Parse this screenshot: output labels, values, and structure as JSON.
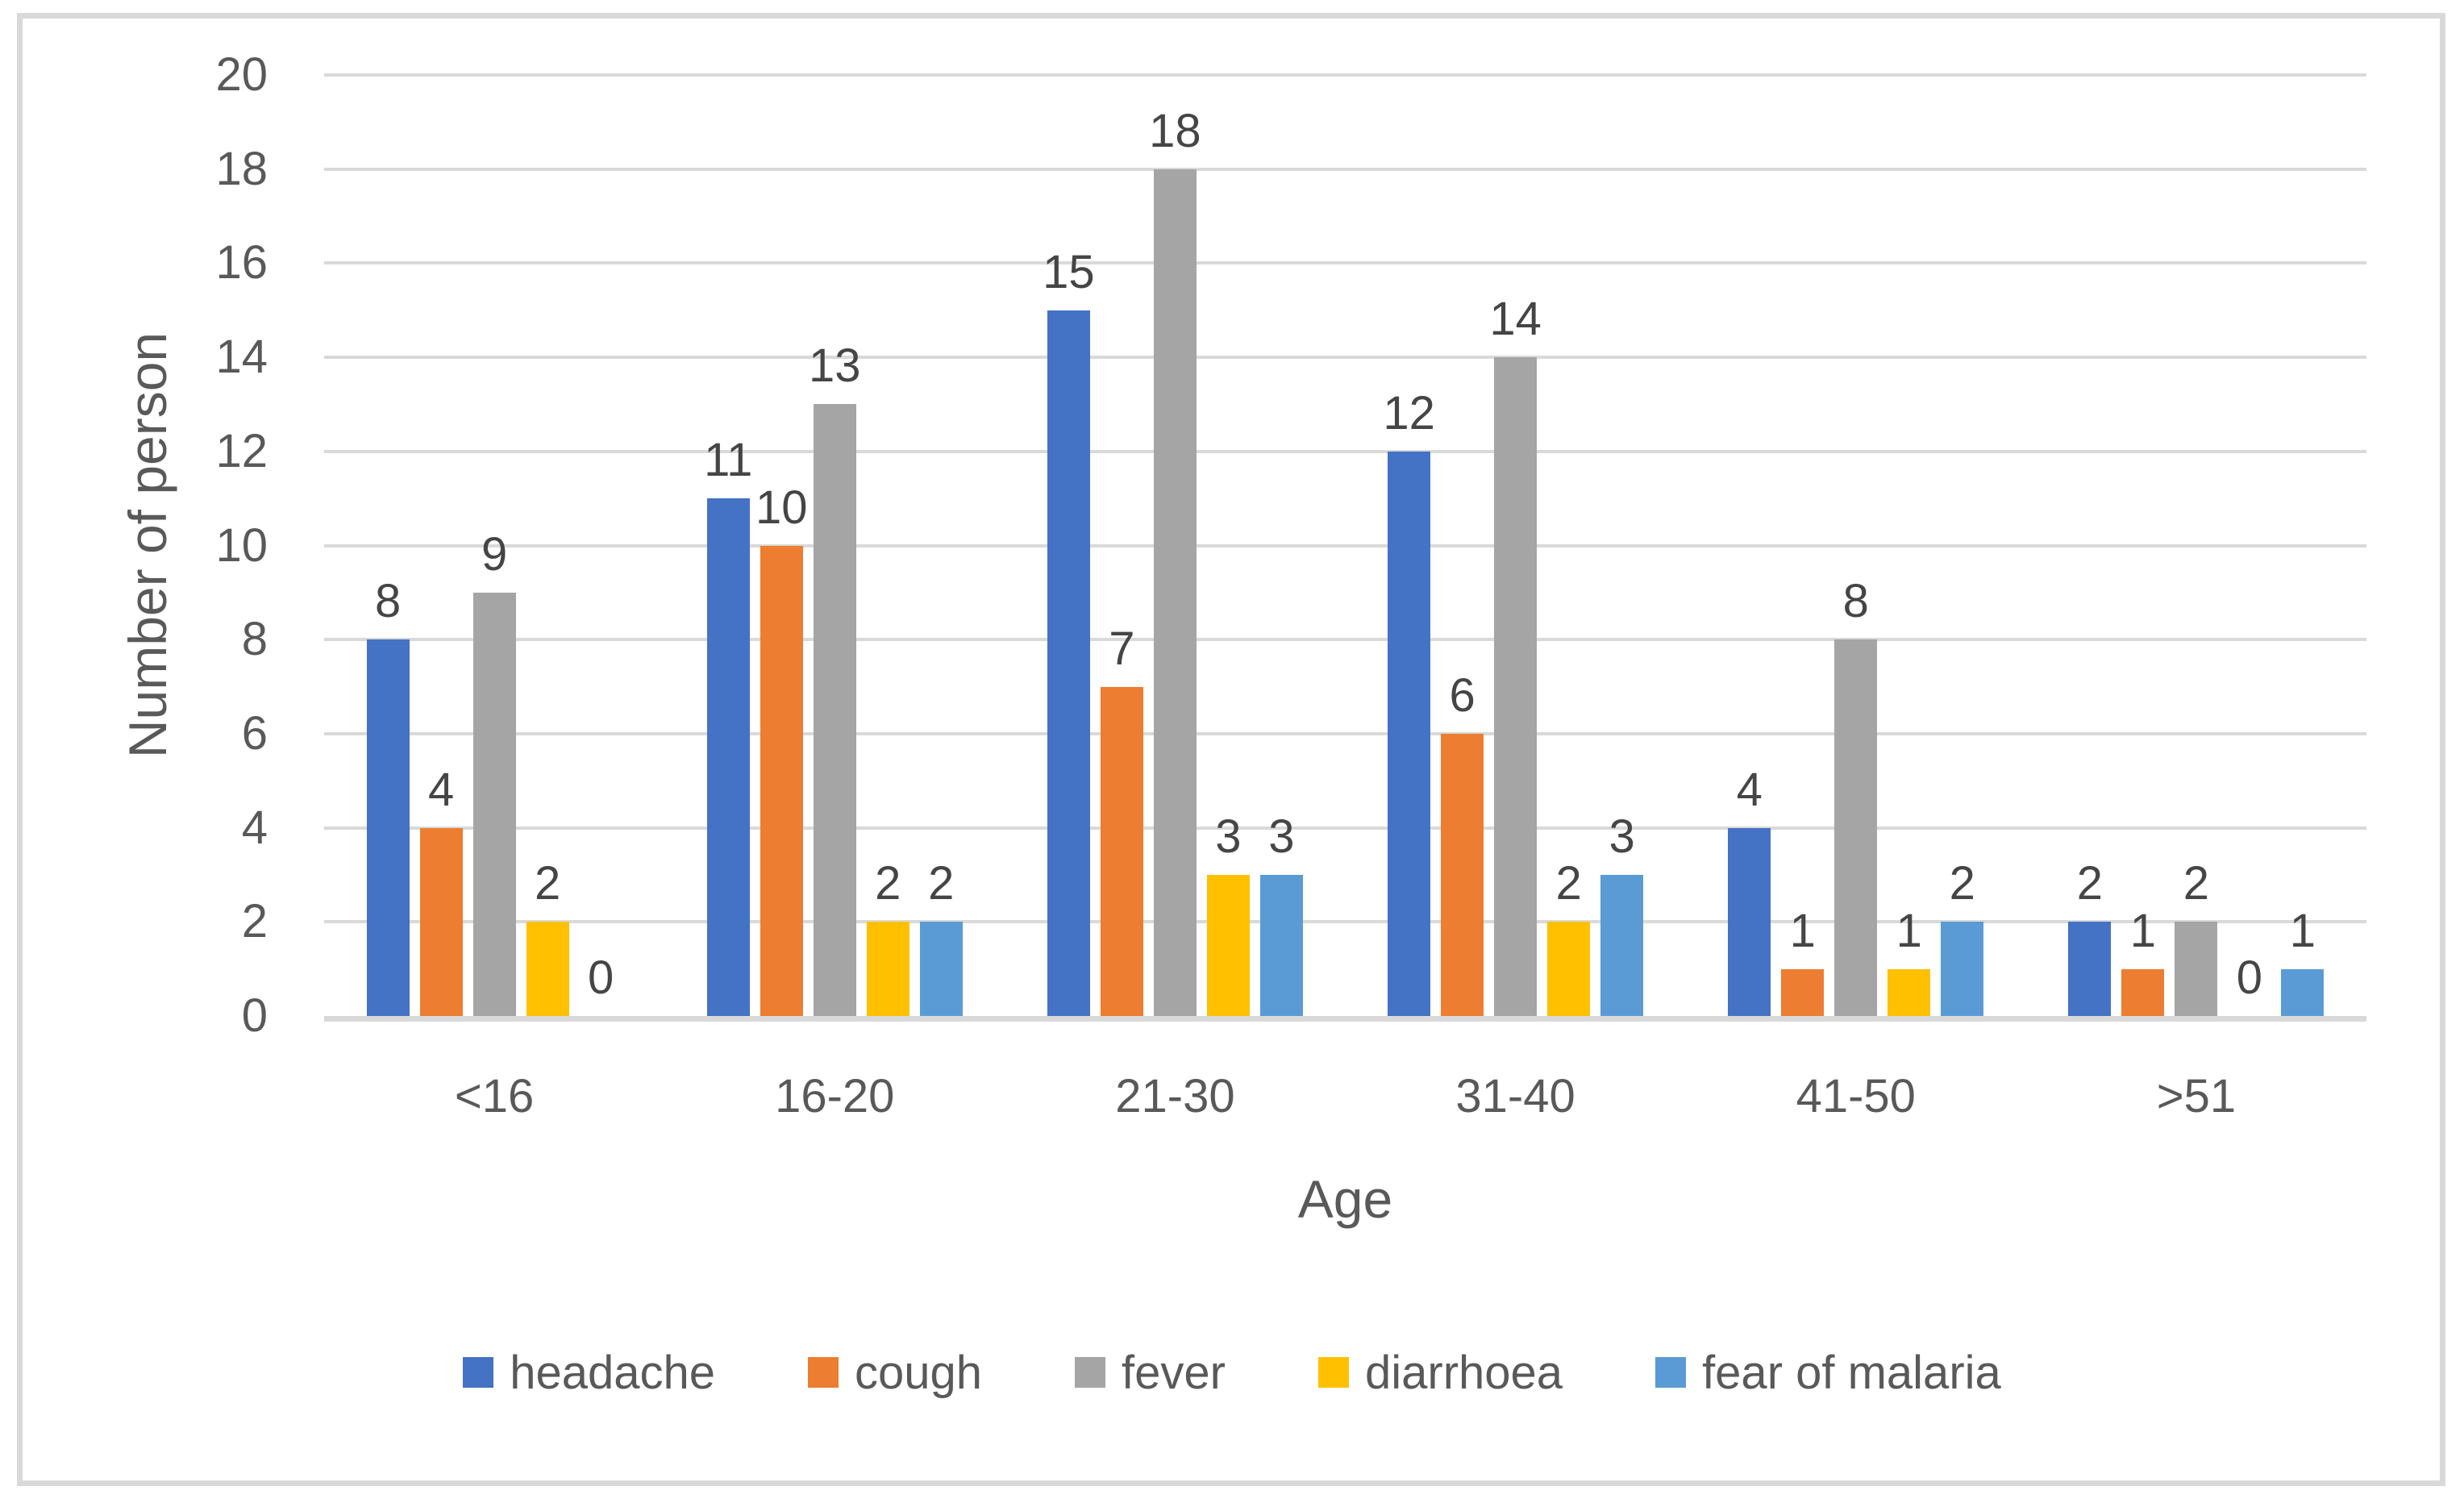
{
  "chart_data": {
    "type": "bar",
    "title": "",
    "categories": [
      "<16",
      "16-20",
      "21-30",
      "31-40",
      "41-50",
      ">51"
    ],
    "series": [
      {
        "name": "headache",
        "color": "#4472C4",
        "values": [
          8,
          11,
          15,
          12,
          4,
          2
        ]
      },
      {
        "name": "cough",
        "color": "#ED7D31",
        "values": [
          4,
          10,
          7,
          6,
          1,
          1
        ]
      },
      {
        "name": "fever",
        "color": "#A5A5A5",
        "values": [
          9,
          13,
          18,
          14,
          8,
          2
        ]
      },
      {
        "name": "diarrhoea",
        "color": "#FFC000",
        "values": [
          2,
          2,
          3,
          2,
          1,
          0
        ]
      },
      {
        "name": "fear of malaria",
        "color": "#5B9BD5",
        "values": [
          0,
          2,
          3,
          3,
          2,
          1
        ]
      }
    ],
    "xlabel": "Age",
    "ylabel": "Number of person",
    "ylim": [
      0,
      20
    ],
    "ytick_step": 2,
    "yticks": [
      0,
      2,
      4,
      6,
      8,
      10,
      12,
      14,
      16,
      18,
      20
    ],
    "grid": true,
    "data_labels": true,
    "legend_position": "bottom"
  },
  "colors": {
    "background": "#FFFFFF",
    "frame_border": "#D9D9D9",
    "gridline": "#D9D9D9",
    "axis_line": "#D9D9D9",
    "axis_text": "#595959",
    "data_label_text": "#454545"
  }
}
